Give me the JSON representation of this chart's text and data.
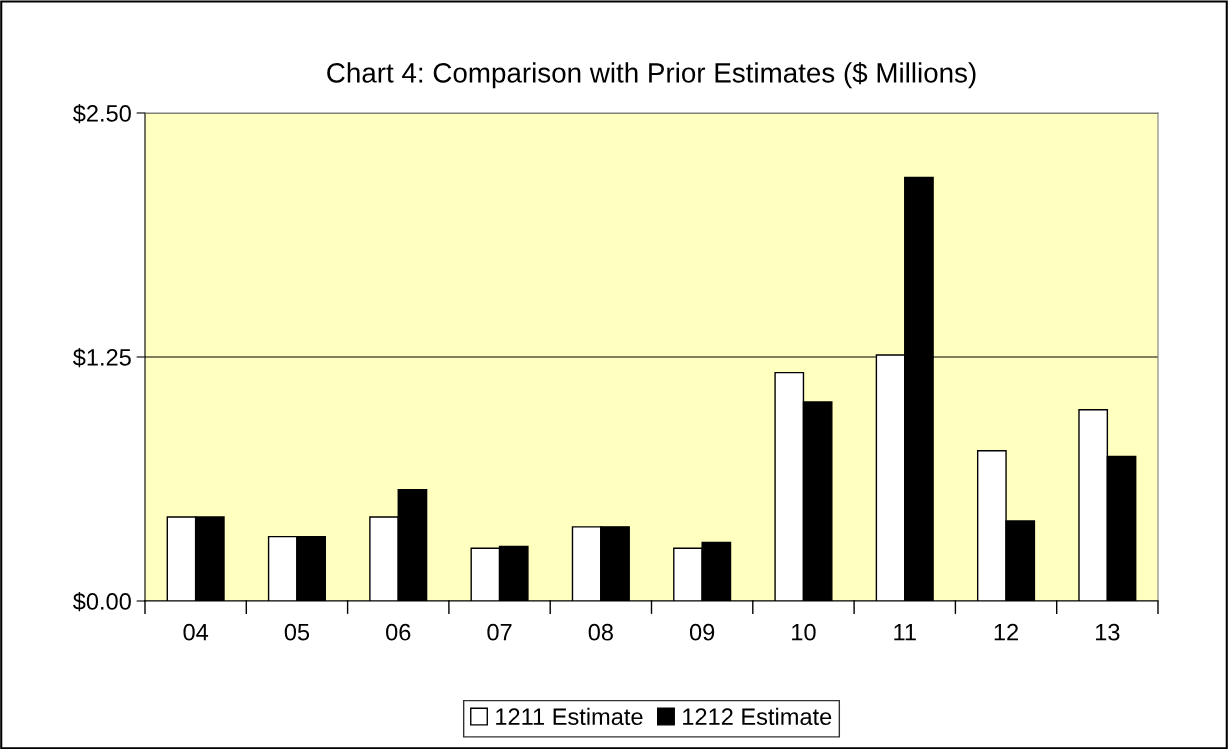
{
  "chart_data": {
    "type": "bar",
    "title": "Chart 4: Comparison with Prior Estimates ($ Millions)",
    "categories": [
      "04",
      "05",
      "06",
      "07",
      "08",
      "09",
      "10",
      "11",
      "12",
      "13"
    ],
    "series": [
      {
        "name": "1211 Estimate",
        "color": "#ffffff",
        "values": [
          0.43,
          0.33,
          0.43,
          0.27,
          0.38,
          0.27,
          1.17,
          1.26,
          0.77,
          0.98
        ]
      },
      {
        "name": "1212 Estimate",
        "color": "#000000",
        "values": [
          0.43,
          0.33,
          0.57,
          0.28,
          0.38,
          0.3,
          1.02,
          2.17,
          0.41,
          0.74
        ]
      }
    ],
    "ylim": [
      0,
      2.5
    ],
    "yticks": [
      {
        "value": 0,
        "label": "$0.00"
      },
      {
        "value": 1.25,
        "label": "$1.25"
      },
      {
        "value": 2.5,
        "label": "$2.50"
      }
    ],
    "grid": "y",
    "legend": "bottom"
  }
}
